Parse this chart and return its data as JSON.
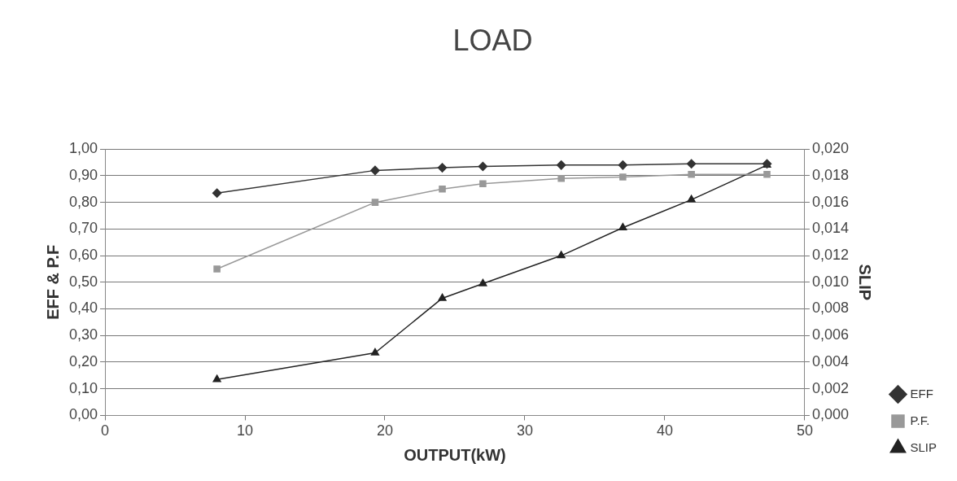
{
  "chart_data": {
    "type": "line",
    "title": "LOAD",
    "xlabel": "OUTPUT(kW)",
    "ylabel": "EFF & P.F",
    "y2label": "SLIP",
    "x": [
      8.0,
      19.3,
      24.1,
      27.0,
      32.6,
      37.0,
      41.9,
      47.3
    ],
    "series": [
      {
        "name": "EFF",
        "color": "#333333",
        "marker": "diamond",
        "values": [
          0.835,
          0.92,
          0.93,
          0.935,
          0.94,
          0.94,
          0.945,
          0.945
        ]
      },
      {
        "name": "P.F.",
        "color": "#999999",
        "marker": "square",
        "values": [
          0.55,
          0.8,
          0.85,
          0.87,
          0.89,
          0.895,
          0.905,
          0.905
        ]
      },
      {
        "name": "SLIP",
        "color": "#222222",
        "marker": "triangle",
        "axis": "y2",
        "values": [
          0.0027,
          0.0047,
          0.0088,
          0.0099,
          0.012,
          0.0141,
          0.0162,
          0.0188
        ]
      }
    ],
    "xlim": [
      0,
      50
    ],
    "xticks": [
      0,
      10,
      20,
      30,
      40,
      50
    ],
    "ylim": [
      0,
      1
    ],
    "yticks": [
      {
        "value": 0,
        "label": "0,00"
      },
      {
        "value": 0.1,
        "label": "0,10"
      },
      {
        "value": 0.2,
        "label": "0,20"
      },
      {
        "value": 0.3,
        "label": "0,30"
      },
      {
        "value": 0.4,
        "label": "0,40"
      },
      {
        "value": 0.5,
        "label": "0,50"
      },
      {
        "value": 0.6,
        "label": "0,60"
      },
      {
        "value": 0.7,
        "label": "0,70"
      },
      {
        "value": 0.8,
        "label": "0,80"
      },
      {
        "value": 0.9,
        "label": "0,90"
      },
      {
        "value": 1,
        "label": "1,00"
      }
    ],
    "y2lim": [
      0,
      0.02
    ],
    "y2ticks": [
      {
        "value": 0,
        "label": "0,000"
      },
      {
        "value": 0.002,
        "label": "0,002"
      },
      {
        "value": 0.004,
        "label": "0,004"
      },
      {
        "value": 0.006,
        "label": "0,006"
      },
      {
        "value": 0.008,
        "label": "0,008"
      },
      {
        "value": 0.01,
        "label": "0,010"
      },
      {
        "value": 0.012,
        "label": "0,012"
      },
      {
        "value": 0.014,
        "label": "0,014"
      },
      {
        "value": 0.016,
        "label": "0,016"
      },
      {
        "value": 0.018,
        "label": "0,018"
      },
      {
        "value": 0.02,
        "label": "0,020"
      }
    ],
    "grid": "y",
    "legend": "bottom right",
    "line_style": "solid"
  }
}
